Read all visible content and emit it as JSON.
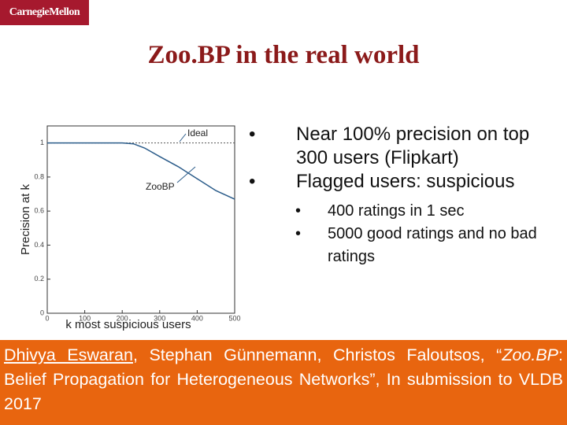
{
  "header": {
    "logo": "CarnegieMellon"
  },
  "title": "Zoo.BP in the real world",
  "bullets": [
    {
      "text": "Near 100% precision on top 300 users (Flipkart)",
      "sub": []
    },
    {
      "text": "Flagged users: suspicious",
      "sub": [
        "400 ratings in 1 sec",
        "5000 good ratings and no bad ratings"
      ]
    }
  ],
  "citation": [
    "Dhivya Eswaran",
    ", Stephan Günnemann, Christos Faloutsos, “",
    "Zoo.BP",
    ": Belief Propagation for Heterogeneous Networks”, In submission to VLDB 2017"
  ],
  "chart_data": {
    "type": "line",
    "x_label": "k most suspicious users",
    "y_label": "Precision at k",
    "xlim": [
      0,
      500
    ],
    "ylim": [
      0,
      1.1
    ],
    "xticks": [
      0,
      100,
      200,
      300,
      400,
      500
    ],
    "yticks": [
      0,
      0.2,
      0.4,
      0.6,
      0.8,
      1
    ],
    "series": [
      {
        "name": "Ideal",
        "color": "#555555",
        "x": [
          0,
          500
        ],
        "values": [
          1,
          1
        ]
      },
      {
        "name": "ZooBP",
        "color": "#2b5c8a",
        "x": [
          0,
          100,
          200,
          230,
          260,
          300,
          350,
          400,
          450,
          500
        ],
        "values": [
          1,
          1,
          1,
          0.995,
          0.97,
          0.92,
          0.86,
          0.79,
          0.72,
          0.67
        ]
      }
    ]
  }
}
